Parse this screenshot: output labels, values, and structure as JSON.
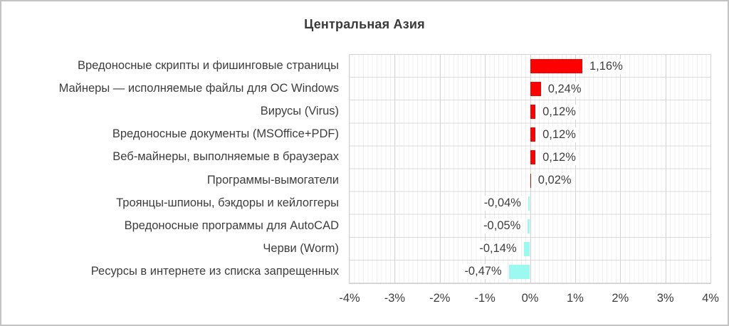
{
  "title": "Центральная Азия",
  "chart_data": {
    "type": "bar",
    "orientation": "horizontal",
    "title": "Центральная Азия",
    "categories": [
      "Вредоносные скрипты и фишинговые страницы",
      "Майнеры — исполняемые файлы для ОС Windows",
      "Вирусы (Virus)",
      "Вредоносные документы (MSOffice+PDF)",
      "Веб-майнеры, выполняемые в браузерах",
      "Программы-вымогатели",
      "Троянцы-шпионы, бэкдоры и кейлоггеры",
      "Вредоносные программы для AutoCAD",
      "Черви (Worm)",
      "Ресурсы в интернете из списка запрещенных"
    ],
    "values": [
      1.16,
      0.24,
      0.12,
      0.12,
      0.12,
      0.02,
      -0.04,
      -0.05,
      -0.14,
      -0.47
    ],
    "value_labels": [
      "1,16%",
      "0,24%",
      "0,12%",
      "0,12%",
      "0,12%",
      "0,02%",
      "-0,04%",
      "-0,05%",
      "-0,14%",
      "-0,47%"
    ],
    "x_ticks": [
      "-4%",
      "-3%",
      "-2%",
      "-1%",
      "0%",
      "1%",
      "2%",
      "3%",
      "4%"
    ],
    "x_tick_values": [
      -4,
      -3,
      -2,
      -1,
      0,
      1,
      2,
      3,
      4
    ],
    "xlim": [
      -4,
      4
    ],
    "minor_unit": 0.1,
    "grid": true,
    "legend": false,
    "colors": {
      "positive_bar": "#ff0000",
      "negative_bar": "#9bf9ef",
      "text": "#3d3d3d",
      "major_grid": "#d4d4d4",
      "minor_grid": "#f0f0f0"
    }
  }
}
